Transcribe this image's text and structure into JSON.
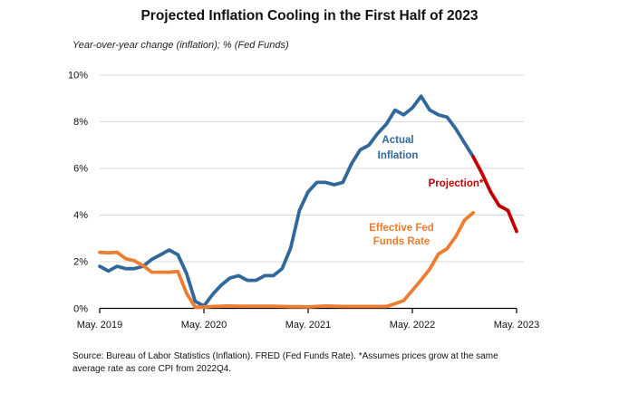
{
  "chart_data": {
    "type": "line",
    "title": "Projected Inflation Cooling in the First Half of 2023",
    "subtitle": "Year-over-year change (inflation); % (Fed Funds)",
    "source_note": "Source: Bureau of Labor Statistics (Inflation). FRED (Fed Funds Rate). *Assumes prices grow at the same average rate as core CPI from 2022Q4.",
    "x_start": "May 2019",
    "months_total": 48,
    "x_tick_labels": [
      "May. 2019",
      "May. 2020",
      "May. 2021",
      "May. 2022",
      "May. 2023"
    ],
    "y_tick_labels": [
      "10%",
      "8%",
      "6%",
      "4%",
      "2%",
      "0%"
    ],
    "ylim": [
      0,
      10
    ],
    "grid": "horizontal",
    "legend_position": "inline-annotations",
    "colors": {
      "actual_inflation": "#31689B",
      "projection": "#C00000",
      "fed_funds": "#ED7D31",
      "gridline": "#D9D9D9",
      "axis": "#000000"
    },
    "series": [
      {
        "name": "Actual Inflation",
        "color": "#31689B",
        "start_month": 0,
        "values": [
          1.8,
          1.6,
          1.8,
          1.7,
          1.7,
          1.8,
          2.1,
          2.3,
          2.5,
          2.3,
          1.5,
          0.3,
          0.1,
          0.6,
          1.0,
          1.3,
          1.4,
          1.2,
          1.2,
          1.4,
          1.4,
          1.7,
          2.6,
          4.2,
          5.0,
          5.4,
          5.4,
          5.3,
          5.4,
          6.2,
          6.8,
          7.0,
          7.5,
          7.9,
          8.5,
          8.3,
          8.6,
          9.1,
          8.5,
          8.3,
          8.2,
          7.7,
          7.1,
          6.5
        ]
      },
      {
        "name": "Projection",
        "color": "#C00000",
        "start_month": 43,
        "values": [
          6.5,
          5.8,
          5.0,
          4.4,
          4.2,
          3.3
        ]
      },
      {
        "name": "Effective Fed Funds Rate",
        "color": "#ED7D31",
        "start_month": 0,
        "values": [
          2.4,
          2.38,
          2.4,
          2.13,
          2.04,
          1.83,
          1.55,
          1.55,
          1.55,
          1.58,
          0.65,
          0.05,
          0.05,
          0.08,
          0.09,
          0.1,
          0.09,
          0.09,
          0.09,
          0.09,
          0.09,
          0.08,
          0.07,
          0.07,
          0.06,
          0.08,
          0.1,
          0.09,
          0.08,
          0.08,
          0.08,
          0.08,
          0.08,
          0.08,
          0.2,
          0.33,
          0.77,
          1.21,
          1.68,
          2.33,
          2.56,
          3.08,
          3.78,
          4.1
        ]
      }
    ],
    "annotations": [
      {
        "id": "actual-inflation",
        "text": "Actual\nInflation",
        "color": "#31689B"
      },
      {
        "id": "projection",
        "text": "Projection*",
        "color": "#C00000"
      },
      {
        "id": "fed-funds",
        "text": "Effective Fed\nFunds Rate",
        "color": "#ED7D31"
      }
    ]
  }
}
